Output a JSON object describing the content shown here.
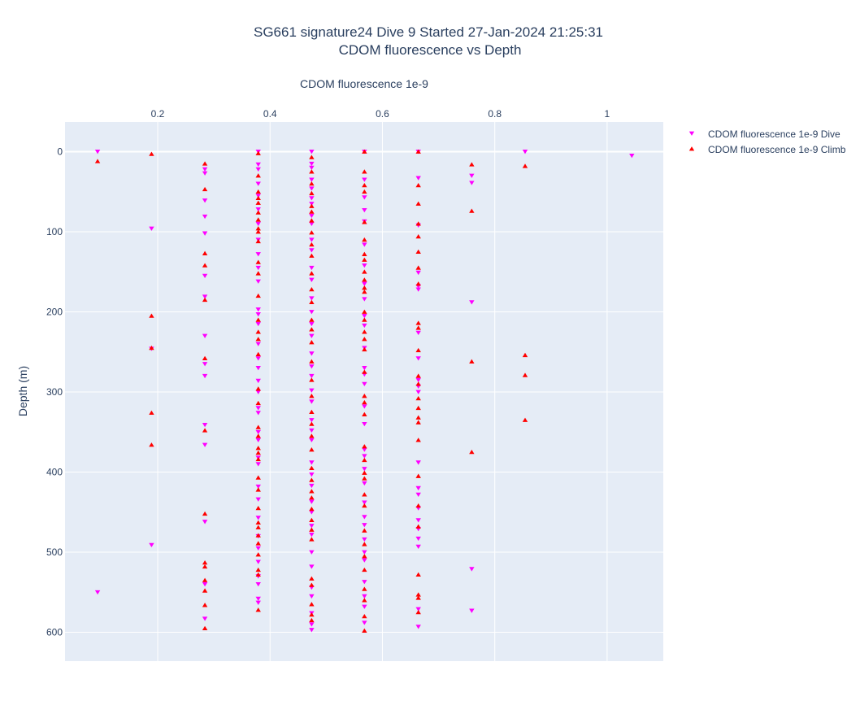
{
  "chart_data": {
    "type": "scatter",
    "title": "SG661 signature24 Dive 9 Started 27-Jan-2024 21:25:31",
    "subtitle": "CDOM fluorescence vs Depth",
    "xlabel": "CDOM fluorescence 1e-9",
    "ylabel": "Depth (m)",
    "x_axis_position": "top",
    "y_axis_reversed": true,
    "xlim": [
      0.035,
      1.1
    ],
    "ylim": [
      636,
      -37
    ],
    "xticks": [
      0.2,
      0.4,
      0.6,
      0.8,
      1
    ],
    "xtick_labels": [
      "0.2",
      "0.4",
      "0.6",
      "0.8",
      "1"
    ],
    "yticks": [
      0,
      100,
      200,
      300,
      400,
      500,
      600
    ],
    "ytick_labels": [
      "0",
      "100",
      "200",
      "300",
      "400",
      "500",
      "600"
    ],
    "grid": true,
    "legend_position": "top-right",
    "series": [
      {
        "name": "CDOM fluorescence 1e-9 Dive",
        "marker": "triangle-down",
        "color": "#ff00ff",
        "points": [
          [
            0.093,
            0
          ],
          [
            0.093,
            550
          ],
          [
            0.189,
            96
          ],
          [
            0.189,
            246
          ],
          [
            0.189,
            491
          ],
          [
            0.284,
            22
          ],
          [
            0.284,
            27
          ],
          [
            0.284,
            61
          ],
          [
            0.284,
            81
          ],
          [
            0.284,
            102
          ],
          [
            0.284,
            155
          ],
          [
            0.284,
            181
          ],
          [
            0.284,
            230
          ],
          [
            0.284,
            265
          ],
          [
            0.284,
            280
          ],
          [
            0.284,
            341
          ],
          [
            0.284,
            366
          ],
          [
            0.284,
            462
          ],
          [
            0.284,
            540
          ],
          [
            0.284,
            583
          ],
          [
            0.379,
            0
          ],
          [
            0.379,
            16
          ],
          [
            0.379,
            22
          ],
          [
            0.379,
            40
          ],
          [
            0.379,
            55
          ],
          [
            0.379,
            72
          ],
          [
            0.379,
            90
          ],
          [
            0.379,
            110
          ],
          [
            0.379,
            128
          ],
          [
            0.379,
            145
          ],
          [
            0.379,
            162
          ],
          [
            0.379,
            197
          ],
          [
            0.379,
            203
          ],
          [
            0.379,
            215
          ],
          [
            0.379,
            240
          ],
          [
            0.379,
            258
          ],
          [
            0.379,
            270
          ],
          [
            0.379,
            286
          ],
          [
            0.379,
            300
          ],
          [
            0.379,
            320
          ],
          [
            0.379,
            326
          ],
          [
            0.379,
            350
          ],
          [
            0.379,
            360
          ],
          [
            0.379,
            382
          ],
          [
            0.379,
            390
          ],
          [
            0.379,
            418
          ],
          [
            0.379,
            434
          ],
          [
            0.379,
            457
          ],
          [
            0.379,
            480
          ],
          [
            0.379,
            495
          ],
          [
            0.379,
            512
          ],
          [
            0.379,
            530
          ],
          [
            0.379,
            540
          ],
          [
            0.379,
            558
          ],
          [
            0.379,
            563
          ],
          [
            0.474,
            0
          ],
          [
            0.474,
            15
          ],
          [
            0.474,
            20
          ],
          [
            0.474,
            35
          ],
          [
            0.474,
            46
          ],
          [
            0.474,
            58
          ],
          [
            0.474,
            65
          ],
          [
            0.474,
            80
          ],
          [
            0.474,
            90
          ],
          [
            0.474,
            110
          ],
          [
            0.474,
            123
          ],
          [
            0.474,
            145
          ],
          [
            0.474,
            160
          ],
          [
            0.474,
            183
          ],
          [
            0.474,
            200
          ],
          [
            0.474,
            215
          ],
          [
            0.474,
            230
          ],
          [
            0.474,
            252
          ],
          [
            0.474,
            268
          ],
          [
            0.474,
            280
          ],
          [
            0.474,
            298
          ],
          [
            0.474,
            312
          ],
          [
            0.474,
            335
          ],
          [
            0.474,
            348
          ],
          [
            0.474,
            360
          ],
          [
            0.474,
            388
          ],
          [
            0.474,
            403
          ],
          [
            0.474,
            417
          ],
          [
            0.474,
            437
          ],
          [
            0.474,
            450
          ],
          [
            0.474,
            467
          ],
          [
            0.474,
            478
          ],
          [
            0.474,
            500
          ],
          [
            0.474,
            518
          ],
          [
            0.474,
            544
          ],
          [
            0.474,
            555
          ],
          [
            0.474,
            576
          ],
          [
            0.474,
            590
          ],
          [
            0.474,
            597
          ],
          [
            0.568,
            0
          ],
          [
            0.568,
            35
          ],
          [
            0.568,
            57
          ],
          [
            0.568,
            73
          ],
          [
            0.568,
            87
          ],
          [
            0.568,
            116
          ],
          [
            0.568,
            142
          ],
          [
            0.568,
            165
          ],
          [
            0.568,
            184
          ],
          [
            0.568,
            205
          ],
          [
            0.568,
            217
          ],
          [
            0.568,
            245
          ],
          [
            0.568,
            270
          ],
          [
            0.568,
            278
          ],
          [
            0.568,
            290
          ],
          [
            0.568,
            318
          ],
          [
            0.568,
            340
          ],
          [
            0.568,
            372
          ],
          [
            0.568,
            380
          ],
          [
            0.568,
            396
          ],
          [
            0.568,
            414
          ],
          [
            0.568,
            438
          ],
          [
            0.568,
            456
          ],
          [
            0.568,
            466
          ],
          [
            0.568,
            484
          ],
          [
            0.568,
            500
          ],
          [
            0.568,
            510
          ],
          [
            0.568,
            537
          ],
          [
            0.568,
            555
          ],
          [
            0.568,
            568
          ],
          [
            0.568,
            588
          ],
          [
            0.664,
            0
          ],
          [
            0.664,
            33
          ],
          [
            0.664,
            92
          ],
          [
            0.664,
            151
          ],
          [
            0.664,
            168
          ],
          [
            0.664,
            172
          ],
          [
            0.664,
            226
          ],
          [
            0.664,
            258
          ],
          [
            0.664,
            285
          ],
          [
            0.664,
            293
          ],
          [
            0.664,
            300
          ],
          [
            0.664,
            388
          ],
          [
            0.664,
            420
          ],
          [
            0.664,
            428
          ],
          [
            0.664,
            445
          ],
          [
            0.664,
            460
          ],
          [
            0.664,
            471
          ],
          [
            0.664,
            483
          ],
          [
            0.664,
            493
          ],
          [
            0.664,
            571
          ],
          [
            0.664,
            593
          ],
          [
            0.759,
            30
          ],
          [
            0.759,
            39
          ],
          [
            0.759,
            188
          ],
          [
            0.759,
            521
          ],
          [
            0.759,
            573
          ],
          [
            0.854,
            0
          ],
          [
            1.044,
            5
          ]
        ]
      },
      {
        "name": "CDOM fluorescence 1e-9 Climb",
        "marker": "triangle-up",
        "color": "#ff0000",
        "points": [
          [
            0.093,
            12
          ],
          [
            0.189,
            3
          ],
          [
            0.189,
            205
          ],
          [
            0.189,
            245
          ],
          [
            0.189,
            326
          ],
          [
            0.189,
            366
          ],
          [
            0.284,
            15
          ],
          [
            0.284,
            47
          ],
          [
            0.284,
            127
          ],
          [
            0.284,
            142
          ],
          [
            0.284,
            185
          ],
          [
            0.284,
            258
          ],
          [
            0.284,
            348
          ],
          [
            0.284,
            452
          ],
          [
            0.284,
            513
          ],
          [
            0.284,
            518
          ],
          [
            0.284,
            535
          ],
          [
            0.284,
            548
          ],
          [
            0.284,
            566
          ],
          [
            0.284,
            595
          ],
          [
            0.379,
            2
          ],
          [
            0.379,
            30
          ],
          [
            0.379,
            50
          ],
          [
            0.379,
            58
          ],
          [
            0.379,
            64
          ],
          [
            0.379,
            76
          ],
          [
            0.379,
            85
          ],
          [
            0.379,
            96
          ],
          [
            0.379,
            100
          ],
          [
            0.379,
            112
          ],
          [
            0.379,
            138
          ],
          [
            0.379,
            152
          ],
          [
            0.379,
            180
          ],
          [
            0.379,
            210
          ],
          [
            0.379,
            225
          ],
          [
            0.379,
            234
          ],
          [
            0.379,
            253
          ],
          [
            0.379,
            296
          ],
          [
            0.379,
            314
          ],
          [
            0.379,
            344
          ],
          [
            0.379,
            355
          ],
          [
            0.379,
            370
          ],
          [
            0.379,
            376
          ],
          [
            0.379,
            384
          ],
          [
            0.379,
            407
          ],
          [
            0.379,
            422
          ],
          [
            0.379,
            445
          ],
          [
            0.379,
            463
          ],
          [
            0.379,
            469
          ],
          [
            0.379,
            479
          ],
          [
            0.379,
            489
          ],
          [
            0.379,
            503
          ],
          [
            0.379,
            522
          ],
          [
            0.379,
            528
          ],
          [
            0.379,
            572
          ],
          [
            0.474,
            7
          ],
          [
            0.474,
            25
          ],
          [
            0.474,
            40
          ],
          [
            0.474,
            52
          ],
          [
            0.474,
            68
          ],
          [
            0.474,
            75
          ],
          [
            0.474,
            86
          ],
          [
            0.474,
            101
          ],
          [
            0.474,
            116
          ],
          [
            0.474,
            130
          ],
          [
            0.474,
            152
          ],
          [
            0.474,
            172
          ],
          [
            0.474,
            188
          ],
          [
            0.474,
            210
          ],
          [
            0.474,
            222
          ],
          [
            0.474,
            238
          ],
          [
            0.474,
            262
          ],
          [
            0.474,
            285
          ],
          [
            0.474,
            305
          ],
          [
            0.474,
            325
          ],
          [
            0.474,
            340
          ],
          [
            0.474,
            355
          ],
          [
            0.474,
            372
          ],
          [
            0.474,
            395
          ],
          [
            0.474,
            410
          ],
          [
            0.474,
            424
          ],
          [
            0.474,
            432
          ],
          [
            0.474,
            446
          ],
          [
            0.474,
            460
          ],
          [
            0.474,
            472
          ],
          [
            0.474,
            484
          ],
          [
            0.474,
            533
          ],
          [
            0.474,
            541
          ],
          [
            0.474,
            565
          ],
          [
            0.474,
            578
          ],
          [
            0.474,
            585
          ],
          [
            0.568,
            0
          ],
          [
            0.568,
            25
          ],
          [
            0.568,
            42
          ],
          [
            0.568,
            50
          ],
          [
            0.568,
            88
          ],
          [
            0.568,
            110
          ],
          [
            0.568,
            128
          ],
          [
            0.568,
            135
          ],
          [
            0.568,
            150
          ],
          [
            0.568,
            160
          ],
          [
            0.568,
            170
          ],
          [
            0.568,
            175
          ],
          [
            0.568,
            200
          ],
          [
            0.568,
            210
          ],
          [
            0.568,
            225
          ],
          [
            0.568,
            234
          ],
          [
            0.568,
            247
          ],
          [
            0.568,
            275
          ],
          [
            0.568,
            305
          ],
          [
            0.568,
            313
          ],
          [
            0.568,
            328
          ],
          [
            0.568,
            368
          ],
          [
            0.568,
            385
          ],
          [
            0.568,
            401
          ],
          [
            0.568,
            408
          ],
          [
            0.568,
            428
          ],
          [
            0.568,
            442
          ],
          [
            0.568,
            473
          ],
          [
            0.568,
            490
          ],
          [
            0.568,
            505
          ],
          [
            0.568,
            522
          ],
          [
            0.568,
            546
          ],
          [
            0.568,
            560
          ],
          [
            0.568,
            580
          ],
          [
            0.568,
            598
          ],
          [
            0.664,
            0
          ],
          [
            0.664,
            42
          ],
          [
            0.664,
            65
          ],
          [
            0.664,
            90
          ],
          [
            0.664,
            106
          ],
          [
            0.664,
            125
          ],
          [
            0.664,
            145
          ],
          [
            0.664,
            165
          ],
          [
            0.664,
            214
          ],
          [
            0.664,
            220
          ],
          [
            0.664,
            248
          ],
          [
            0.664,
            280
          ],
          [
            0.664,
            290
          ],
          [
            0.664,
            308
          ],
          [
            0.664,
            320
          ],
          [
            0.664,
            332
          ],
          [
            0.664,
            338
          ],
          [
            0.664,
            360
          ],
          [
            0.664,
            405
          ],
          [
            0.664,
            442
          ],
          [
            0.664,
            468
          ],
          [
            0.664,
            528
          ],
          [
            0.664,
            553
          ],
          [
            0.664,
            557
          ],
          [
            0.664,
            575
          ],
          [
            0.759,
            16
          ],
          [
            0.759,
            74
          ],
          [
            0.759,
            262
          ],
          [
            0.759,
            375
          ],
          [
            0.854,
            18
          ],
          [
            0.854,
            254
          ],
          [
            0.854,
            279
          ],
          [
            0.854,
            335
          ]
        ]
      }
    ]
  }
}
